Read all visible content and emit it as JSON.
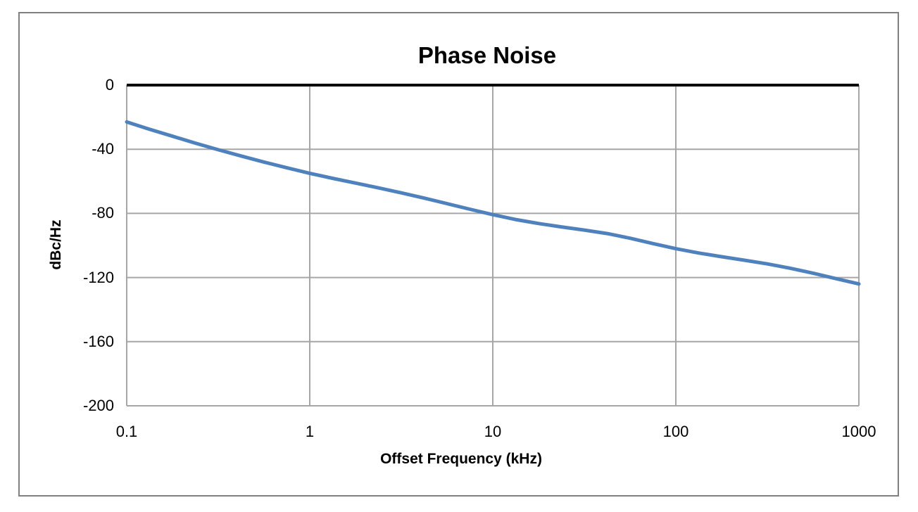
{
  "chart": {
    "title": "Phase Noise",
    "y_axis": {
      "label": "dBc/Hz"
    },
    "x_axis": {
      "label": "Offset Frequency (kHz)"
    },
    "colors": {
      "line": "#4F81BD",
      "gridline": "#A6A6A6",
      "zero_axis_line": "#000000",
      "frame_border": "#808080",
      "text": "#000000",
      "background": "#FFFFFF"
    }
  },
  "chart_data": {
    "type": "line",
    "title": "Phase Noise",
    "xlabel": "Offset Frequency (kHz)",
    "ylabel": "dBc/Hz",
    "x_scale": "log",
    "xlim": [
      0.1,
      1000
    ],
    "ylim": [
      -200,
      0
    ],
    "x_tick_labels": [
      "0.1",
      "1",
      "10",
      "100",
      "1000"
    ],
    "x_tick_values": [
      0.1,
      1,
      10,
      100,
      1000
    ],
    "y_tick_labels": [
      "0",
      "-40",
      "-80",
      "-120",
      "-160",
      "-200"
    ],
    "y_tick_values": [
      0,
      -40,
      -80,
      -120,
      -160,
      -200
    ],
    "grid": true,
    "legend": "none",
    "series": [
      {
        "name": "Phase Noise",
        "color": "#4F81BD",
        "smooth": true,
        "x": [
          0.1,
          1,
          10,
          100,
          1000
        ],
        "values": [
          -23,
          -55,
          -81,
          -102,
          -124
        ]
      }
    ],
    "curve_samples": [
      [
        0.1,
        -23.0
      ],
      [
        0.133,
        -27.5
      ],
      [
        0.178,
        -31.9
      ],
      [
        0.237,
        -36.2
      ],
      [
        0.316,
        -40.3
      ],
      [
        0.422,
        -44.2
      ],
      [
        0.562,
        -48.0
      ],
      [
        0.75,
        -51.6
      ],
      [
        1,
        -55.0
      ],
      [
        1.33,
        -58.1
      ],
      [
        1.78,
        -61.1
      ],
      [
        2.37,
        -64.1
      ],
      [
        3.16,
        -67.2
      ],
      [
        4.22,
        -70.5
      ],
      [
        5.62,
        -73.9
      ],
      [
        7.5,
        -77.4
      ],
      [
        10,
        -80.8
      ],
      [
        13.3,
        -83.8
      ],
      [
        17.8,
        -86.3
      ],
      [
        23.7,
        -88.4
      ],
      [
        31.6,
        -90.4
      ],
      [
        42.2,
        -92.6
      ],
      [
        56.2,
        -95.5
      ],
      [
        75,
        -98.8
      ],
      [
        100,
        -102.0
      ],
      [
        133,
        -104.7
      ],
      [
        178,
        -107.0
      ],
      [
        237,
        -109.2
      ],
      [
        316,
        -111.5
      ],
      [
        422,
        -114.2
      ],
      [
        562,
        -117.3
      ],
      [
        750,
        -120.7
      ],
      [
        1000,
        -124.0
      ]
    ]
  }
}
